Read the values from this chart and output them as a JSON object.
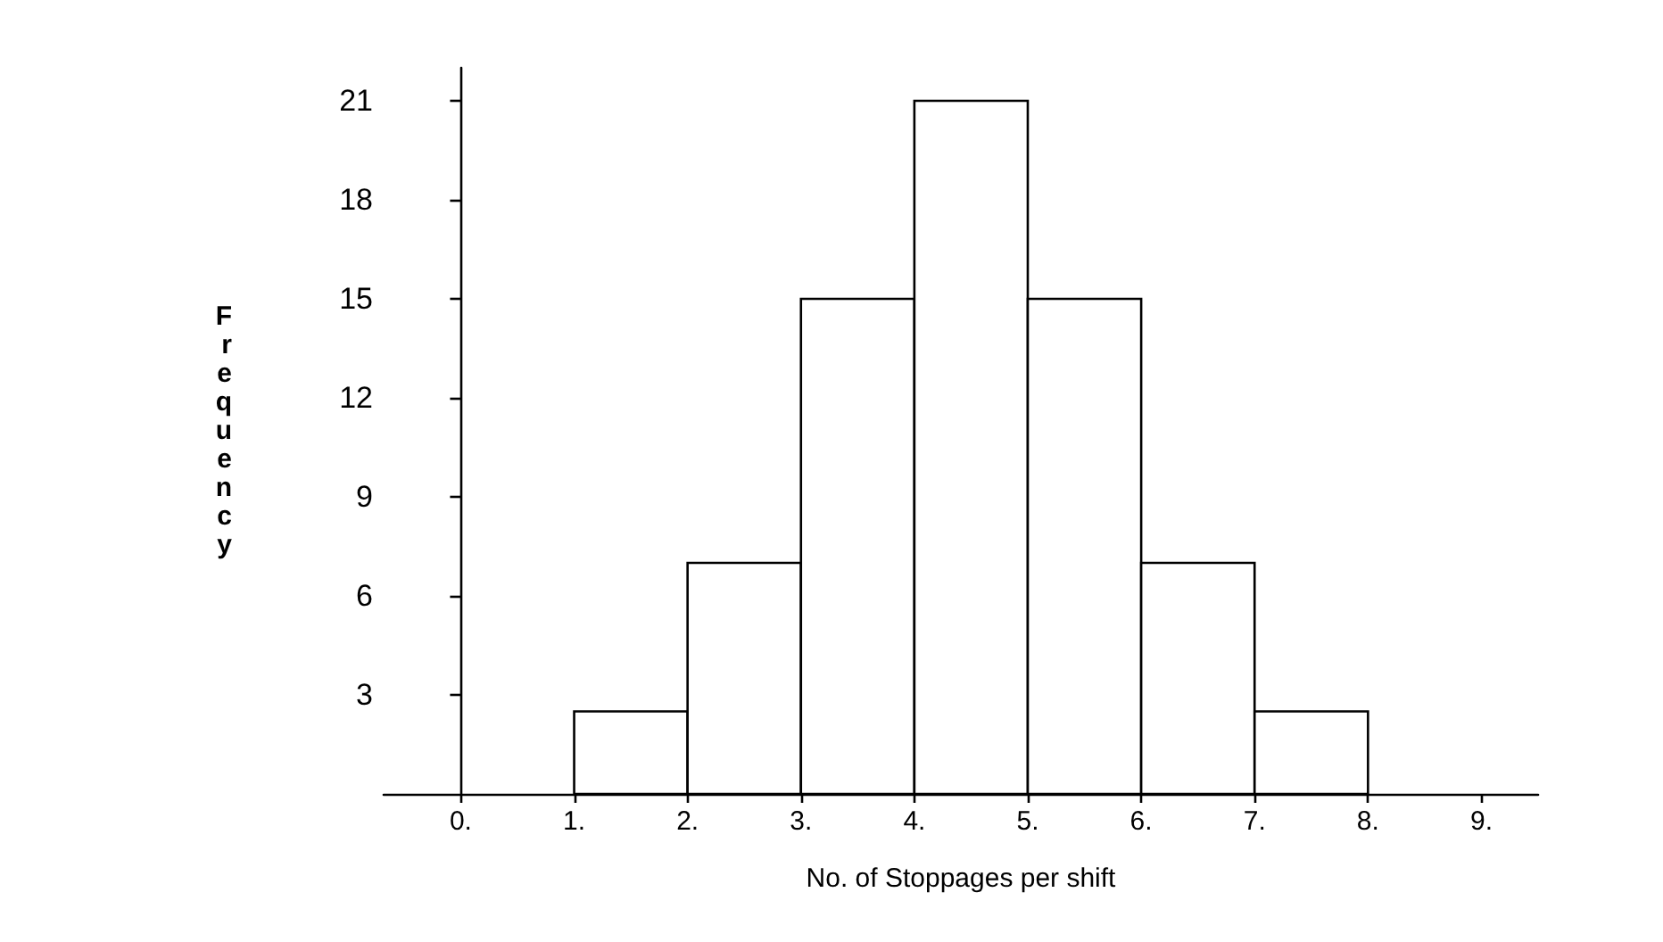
{
  "chart_data": {
    "type": "histogram",
    "xlabel": "No. of Stoppages per shift",
    "ylabel": "Frequency",
    "bins": [
      1,
      2,
      3,
      4,
      5,
      6,
      7,
      8
    ],
    "values": [
      2.5,
      7,
      15,
      21,
      15,
      7,
      2.5
    ],
    "color": "#ffffff",
    "xlim": [
      -0.68,
      9.5
    ],
    "xticks": [
      {
        "value": 0,
        "label": "0."
      },
      {
        "value": 1,
        "label": "1."
      },
      {
        "value": 2,
        "label": "2."
      },
      {
        "value": 3,
        "label": "3."
      },
      {
        "value": 4,
        "label": "4."
      },
      {
        "value": 5,
        "label": "5."
      },
      {
        "value": 6,
        "label": "6."
      },
      {
        "value": 7,
        "label": "7."
      },
      {
        "value": 8,
        "label": "8."
      },
      {
        "value": 9,
        "label": "9."
      }
    ],
    "ylim": [
      0,
      22
    ],
    "yticks": [
      3,
      6,
      9,
      12,
      15,
      18,
      21
    ]
  }
}
